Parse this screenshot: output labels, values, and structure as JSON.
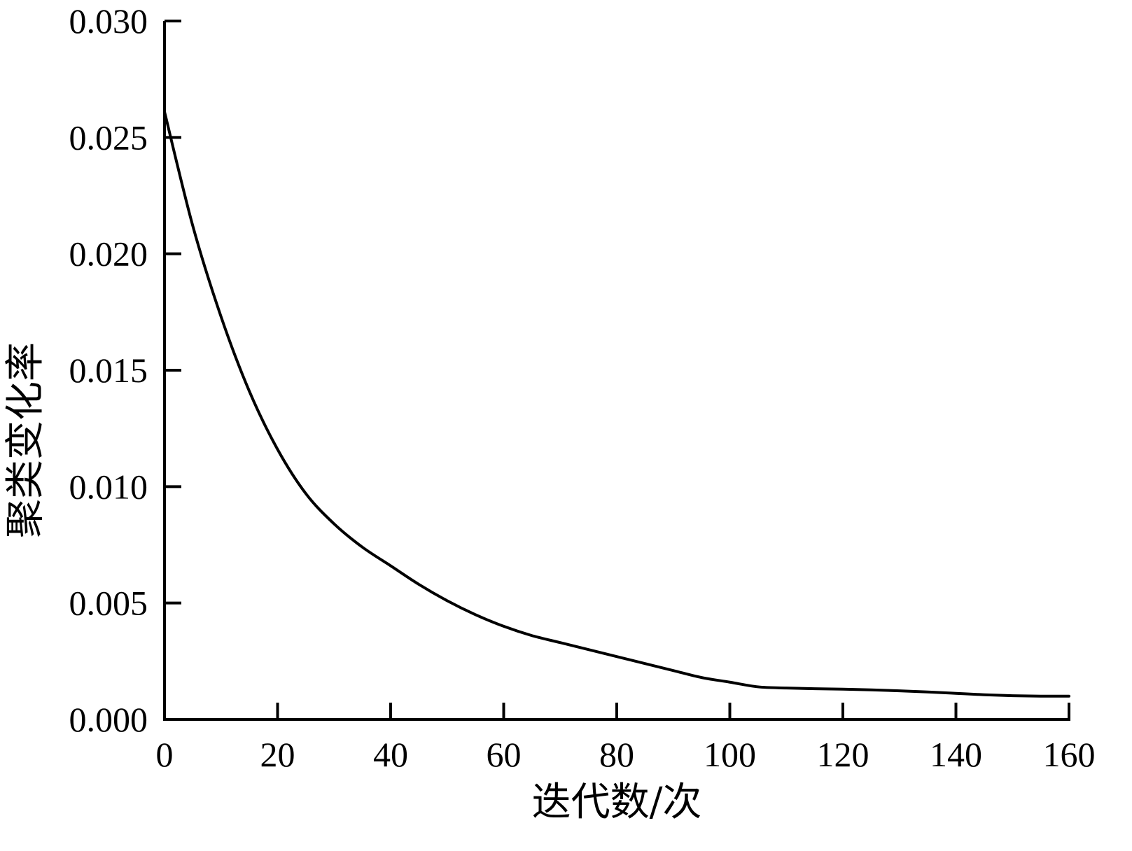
{
  "chart_data": {
    "type": "line",
    "title": "",
    "xlabel": "迭代数/次",
    "ylabel": "聚类变化率",
    "xlim": [
      0,
      160
    ],
    "ylim": [
      0,
      0.03
    ],
    "x_ticks": [
      0,
      20,
      40,
      60,
      80,
      100,
      120,
      140,
      160
    ],
    "x_tick_labels": [
      "0",
      "20",
      "40",
      "60",
      "80",
      "100",
      "120",
      "140",
      "160"
    ],
    "y_ticks": [
      0,
      0.005,
      0.01,
      0.015,
      0.02,
      0.025,
      0.03
    ],
    "y_tick_labels": [
      "0.000",
      "0.005",
      "0.010",
      "0.015",
      "0.020",
      "0.025",
      "0.030"
    ],
    "grid": false,
    "line_color": "#000000",
    "series": [
      {
        "x": [
          0,
          5,
          10,
          15,
          20,
          25,
          30,
          35,
          40,
          45,
          50,
          55,
          60,
          65,
          70,
          75,
          80,
          85,
          90,
          95,
          100,
          105,
          110,
          115,
          120,
          125,
          130,
          135,
          140,
          145,
          150,
          155,
          160
        ],
        "values": [
          0.0261,
          0.0212,
          0.0173,
          0.0141,
          0.0116,
          0.0097,
          0.0084,
          0.0074,
          0.0066,
          0.0058,
          0.0051,
          0.0045,
          0.004,
          0.0036,
          0.0033,
          0.003,
          0.0027,
          0.0024,
          0.0021,
          0.0018,
          0.0016,
          0.0014,
          0.00135,
          0.00132,
          0.0013,
          0.00127,
          0.00123,
          0.00118,
          0.00112,
          0.00106,
          0.00102,
          0.001,
          0.001
        ]
      }
    ]
  }
}
